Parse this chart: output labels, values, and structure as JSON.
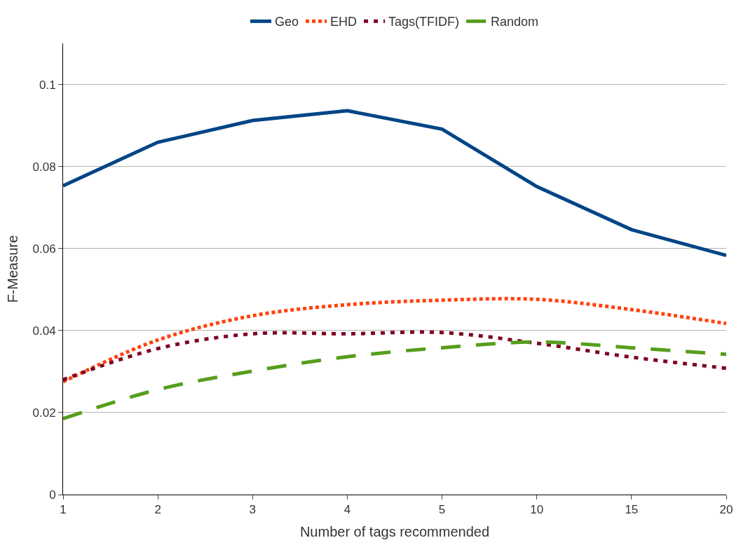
{
  "chart_data": {
    "type": "line",
    "xlabel": "Number of tags recommended",
    "ylabel": "F-Measure",
    "categories": [
      "1",
      "2",
      "3",
      "4",
      "5",
      "10",
      "15",
      "20"
    ],
    "series": [
      {
        "name": "Geo",
        "color": "#004586",
        "line_style": "solid",
        "values": [
          0.0753,
          0.0859,
          0.0912,
          0.0936,
          0.0891,
          0.0751,
          0.0646,
          0.0583
        ]
      },
      {
        "name": "EHD",
        "color": "#ff420e",
        "line_style": "dotted",
        "values": [
          0.0275,
          0.0377,
          0.0436,
          0.0463,
          0.0474,
          0.0476,
          0.0451,
          0.0417
        ]
      },
      {
        "name": "Tags(TFIDF)",
        "color": "#7e0021",
        "line_style": "dotted",
        "values": [
          0.028,
          0.0356,
          0.0392,
          0.0392,
          0.0395,
          0.0369,
          0.0335,
          0.0308
        ]
      },
      {
        "name": "Random",
        "color": "#579d1c",
        "line_style": "dashed",
        "values": [
          0.0185,
          0.0256,
          0.0301,
          0.0336,
          0.0358,
          0.0372,
          0.0358,
          0.0342
        ]
      }
    ],
    "ylim": [
      0,
      0.11
    ],
    "yticks": [
      0,
      0.02,
      0.04,
      0.06,
      0.08,
      0.1
    ],
    "grid": "y",
    "legend": "top",
    "marker": "none"
  }
}
